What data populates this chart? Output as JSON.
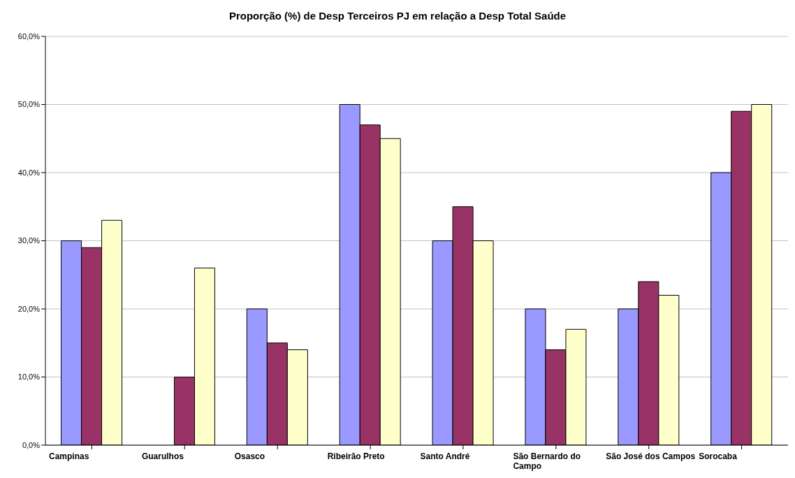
{
  "chart_data": {
    "type": "bar",
    "title": "Proporção (%) de Desp Terceiros PJ em relação a Desp Total Saúde",
    "categories": [
      "Campinas",
      "Guarulhos",
      "Osasco",
      "Ribeirão Preto",
      "Santo André",
      "São Bernardo do Campo",
      "São José dos Campos",
      "Sorocaba"
    ],
    "series": [
      {
        "color": "#9999ff",
        "values": [
          30,
          null,
          20,
          50,
          30,
          20,
          20,
          40
        ]
      },
      {
        "color": "#993366",
        "values": [
          29,
          10,
          15,
          47,
          35,
          14,
          24,
          49
        ]
      },
      {
        "color": "#ffffcc",
        "values": [
          33,
          26,
          14,
          45,
          30,
          17,
          22,
          50
        ]
      }
    ],
    "ylim": [
      0,
      60
    ],
    "yticks": [
      {
        "value": 0,
        "label": "0,0%"
      },
      {
        "value": 10,
        "label": "10,0%"
      },
      {
        "value": 20,
        "label": "20,0%"
      },
      {
        "value": 30,
        "label": "30,0%"
      },
      {
        "value": 40,
        "label": "40,0%"
      },
      {
        "value": 50,
        "label": "50,0%"
      },
      {
        "value": 60,
        "label": "60,0%"
      }
    ],
    "grid": "y",
    "legend": false
  }
}
